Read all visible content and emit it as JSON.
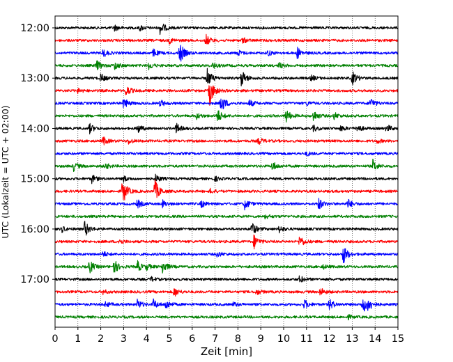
{
  "chart_data": {
    "type": "line",
    "title": "",
    "xlabel": "Zeit  [min]",
    "ylabel": "UTC (Lokalzeit = UTC + 02:00)",
    "xlim": [
      0,
      15
    ],
    "x_ticks": [
      "0",
      "1",
      "2",
      "3",
      "4",
      "5",
      "6",
      "7",
      "8",
      "9",
      "10",
      "11",
      "12",
      "13",
      "14",
      "15"
    ],
    "y_tick_labels": [
      "12:00",
      "13:00",
      "14:00",
      "15:00",
      "16:00",
      "17:00"
    ],
    "grid": "vertical dotted",
    "trace_interval_min": 15,
    "trace_colors": [
      "#000000",
      "#ff0000",
      "#0000ff",
      "#008000"
    ],
    "traces": [
      {
        "start": "12:00",
        "events": [
          [
            4.6,
            10
          ],
          [
            3.7,
            4
          ],
          [
            2.6,
            4
          ]
        ]
      },
      {
        "start": "12:15",
        "events": [
          [
            6.6,
            8
          ],
          [
            5.0,
            4
          ],
          [
            8.2,
            4
          ]
        ]
      },
      {
        "start": "12:30",
        "events": [
          [
            5.45,
            16
          ],
          [
            2.1,
            6
          ],
          [
            4.3,
            6
          ],
          [
            10.6,
            8
          ],
          [
            9.3,
            4
          ],
          [
            8.0,
            4
          ]
        ]
      },
      {
        "start": "12:45",
        "events": [
          [
            1.8,
            8
          ],
          [
            2.6,
            6
          ],
          [
            4.1,
            5
          ],
          [
            6.9,
            4
          ],
          [
            9.8,
            4
          ]
        ]
      },
      {
        "start": "13:00",
        "events": [
          [
            6.65,
            14
          ],
          [
            8.15,
            13
          ],
          [
            13.0,
            10
          ],
          [
            2.0,
            6
          ],
          [
            11.2,
            4
          ]
        ]
      },
      {
        "start": "13:15",
        "events": [
          [
            6.75,
            22
          ],
          [
            3.1,
            8
          ],
          [
            1.0,
            3
          ]
        ]
      },
      {
        "start": "13:30",
        "events": [
          [
            7.25,
            14
          ],
          [
            3.0,
            8
          ],
          [
            4.6,
            5
          ],
          [
            8.5,
            5
          ],
          [
            13.8,
            8
          ],
          [
            11.0,
            3
          ]
        ]
      },
      {
        "start": "13:45",
        "events": [
          [
            7.1,
            10
          ],
          [
            10.1,
            10
          ],
          [
            11.3,
            8
          ],
          [
            12.2,
            5
          ],
          [
            6.2,
            4
          ]
        ]
      },
      {
        "start": "14:00",
        "events": [
          [
            1.5,
            7
          ],
          [
            3.6,
            7
          ],
          [
            5.3,
            7
          ],
          [
            13.2,
            6
          ],
          [
            14.5,
            6
          ],
          [
            11.3,
            4
          ],
          [
            12.5,
            4
          ]
        ]
      },
      {
        "start": "14:15",
        "events": [
          [
            2.1,
            6
          ],
          [
            8.9,
            5
          ],
          [
            3.2,
            4
          ],
          [
            14.1,
            3
          ]
        ]
      },
      {
        "start": "14:30",
        "events": [
          [
            11.0,
            3
          ]
        ]
      },
      {
        "start": "14:45",
        "events": [
          [
            0.8,
            7
          ],
          [
            9.5,
            7
          ],
          [
            13.9,
            9
          ],
          [
            2.2,
            4
          ]
        ]
      },
      {
        "start": "15:00",
        "events": [
          [
            1.6,
            6
          ],
          [
            4.4,
            6
          ],
          [
            3.0,
            4
          ],
          [
            7.0,
            3
          ]
        ]
      },
      {
        "start": "15:15",
        "events": [
          [
            2.95,
            20
          ],
          [
            4.35,
            18
          ],
          [
            6.8,
            3
          ]
        ]
      },
      {
        "start": "15:30",
        "events": [
          [
            8.3,
            8
          ],
          [
            11.5,
            10
          ],
          [
            12.8,
            7
          ],
          [
            3.6,
            6
          ],
          [
            4.7,
            5
          ],
          [
            6.4,
            5
          ]
        ]
      },
      {
        "start": "15:45",
        "events": [
          [
            9.2,
            3
          ]
        ]
      },
      {
        "start": "16:00",
        "events": [
          [
            1.3,
            12
          ],
          [
            8.6,
            10
          ],
          [
            9.8,
            5
          ],
          [
            0.3,
            4
          ]
        ]
      },
      {
        "start": "16:15",
        "events": [
          [
            8.7,
            10
          ],
          [
            10.7,
            9
          ],
          [
            2.8,
            4
          ]
        ]
      },
      {
        "start": "16:30",
        "events": [
          [
            12.6,
            14
          ],
          [
            2.1,
            4
          ],
          [
            7.1,
            4
          ]
        ]
      },
      {
        "start": "16:45",
        "events": [
          [
            1.5,
            10
          ],
          [
            2.55,
            12
          ],
          [
            3.6,
            8
          ],
          [
            4.7,
            10
          ],
          [
            4.0,
            4
          ],
          [
            11.7,
            3
          ]
        ]
      },
      {
        "start": "17:00",
        "events": [
          [
            10.7,
            5
          ],
          [
            4.2,
            3
          ]
        ]
      },
      {
        "start": "17:15",
        "events": [
          [
            5.2,
            7
          ],
          [
            11.6,
            6
          ],
          [
            8.8,
            4
          ],
          [
            2.1,
            3
          ]
        ]
      },
      {
        "start": "17:30",
        "events": [
          [
            3.6,
            7
          ],
          [
            4.3,
            7
          ],
          [
            4.85,
            7
          ],
          [
            10.9,
            7
          ],
          [
            12.0,
            8
          ],
          [
            13.45,
            14
          ],
          [
            13.7,
            8
          ],
          [
            2.2,
            4
          ],
          [
            7.8,
            3
          ]
        ]
      },
      {
        "start": "17:45",
        "events": [
          [
            12.8,
            3
          ]
        ]
      }
    ]
  }
}
